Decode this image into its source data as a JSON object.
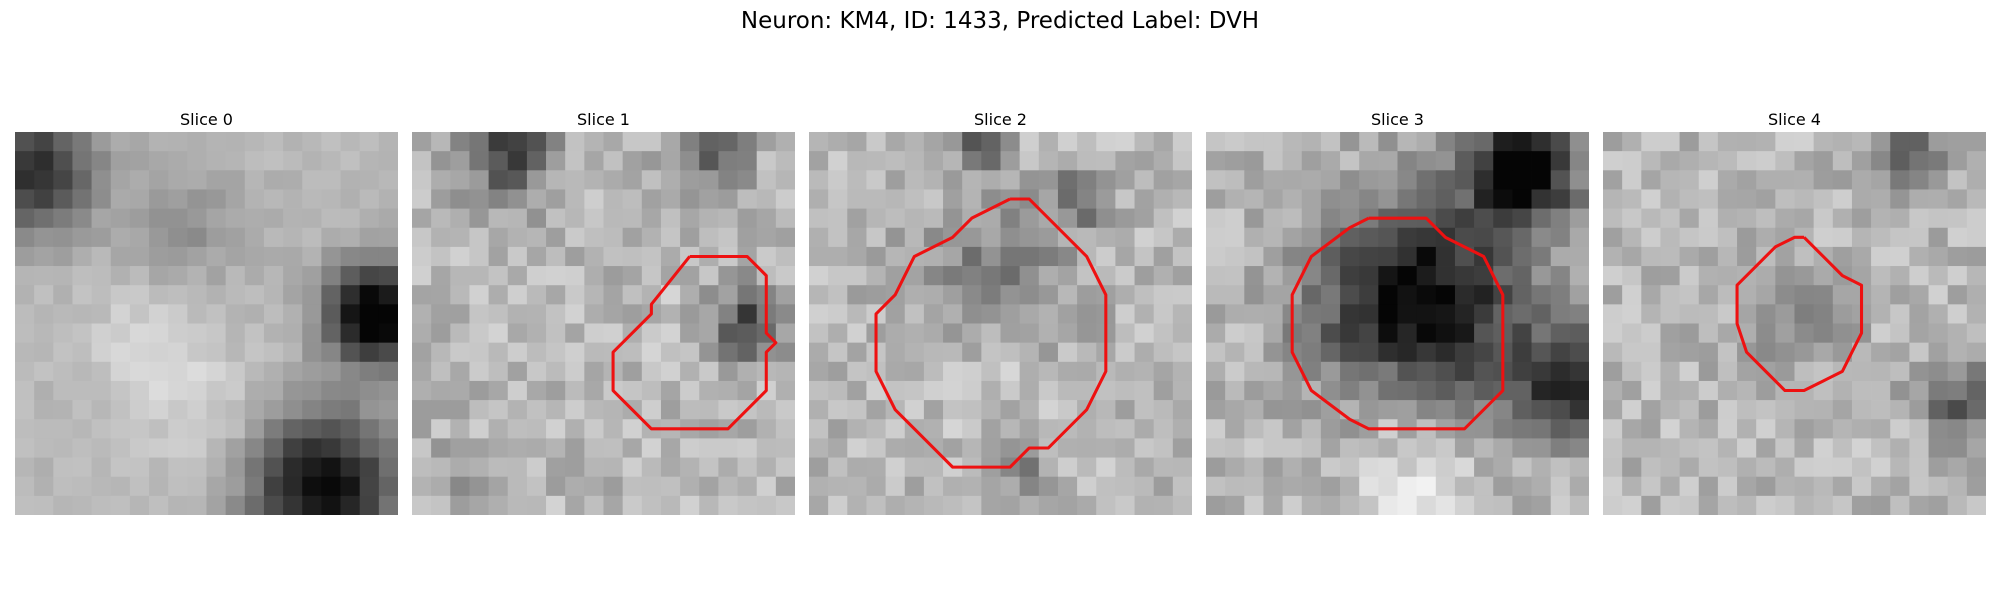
{
  "figure": {
    "title": "Neuron: KM4, ID: 1433, Predicted Label: DVH"
  },
  "slices": [
    {
      "title": "Slice 0",
      "contour": null
    },
    {
      "title": "Slice 1",
      "contour": [
        [
          14.5,
          6.5
        ],
        [
          17.5,
          6.5
        ],
        [
          18.5,
          7.5
        ],
        [
          18.5,
          10.5
        ],
        [
          19,
          11
        ],
        [
          18.5,
          11.5
        ],
        [
          18.5,
          13.5
        ],
        [
          16.5,
          15.5
        ],
        [
          12.5,
          15.5
        ],
        [
          10.5,
          13.5
        ],
        [
          10.5,
          11.5
        ],
        [
          11.5,
          10.5
        ],
        [
          12.5,
          9.5
        ],
        [
          12.5,
          9
        ],
        [
          14.5,
          6.5
        ]
      ]
    },
    {
      "title": "Slice 2",
      "contour": [
        [
          10.5,
          3.5
        ],
        [
          11.5,
          3.5
        ],
        [
          12.5,
          4.5
        ],
        [
          13.5,
          5.5
        ],
        [
          14.5,
          6.5
        ],
        [
          15.5,
          8.5
        ],
        [
          15.5,
          12.5
        ],
        [
          14.5,
          14.5
        ],
        [
          13.5,
          15.5
        ],
        [
          12.5,
          16.5
        ],
        [
          11.5,
          16.5
        ],
        [
          10.5,
          17.5
        ],
        [
          7.5,
          17.5
        ],
        [
          6.5,
          16.5
        ],
        [
          5.5,
          15.5
        ],
        [
          4.5,
          14.5
        ],
        [
          3.5,
          12.5
        ],
        [
          3.5,
          9.5
        ],
        [
          4.5,
          8.5
        ],
        [
          5.5,
          6.5
        ],
        [
          7.5,
          5.5
        ],
        [
          8.5,
          4.5
        ],
        [
          10.5,
          3.5
        ]
      ]
    },
    {
      "title": "Slice 3",
      "contour": [
        [
          8.5,
          4.5
        ],
        [
          11.5,
          4.5
        ],
        [
          12.5,
          5.5
        ],
        [
          14.5,
          6.5
        ],
        [
          15.5,
          8.5
        ],
        [
          15.5,
          13.5
        ],
        [
          13.5,
          15.5
        ],
        [
          8.5,
          15.5
        ],
        [
          7.5,
          15
        ],
        [
          5.5,
          13.5
        ],
        [
          4.5,
          11.5
        ],
        [
          4.5,
          8.5
        ],
        [
          5.5,
          6.5
        ],
        [
          7.5,
          5
        ],
        [
          8.5,
          4.5
        ]
      ]
    },
    {
      "title": "Slice 4",
      "contour": [
        [
          10.5,
          5.5
        ],
        [
          11.5,
          6.5
        ],
        [
          12.5,
          7.5
        ],
        [
          13.5,
          8
        ],
        [
          13.5,
          10.5
        ],
        [
          13,
          11.5
        ],
        [
          12.5,
          12.5
        ],
        [
          11.5,
          13
        ],
        [
          10.5,
          13.5
        ],
        [
          9.5,
          13.5
        ],
        [
          8.5,
          12.5
        ],
        [
          7.5,
          11.5
        ],
        [
          7,
          10
        ],
        [
          7,
          8
        ],
        [
          8,
          7
        ],
        [
          9,
          6
        ],
        [
          10,
          5.5
        ],
        [
          10.5,
          5.5
        ]
      ]
    }
  ],
  "style": {
    "contour_color": "#ee1111"
  }
}
